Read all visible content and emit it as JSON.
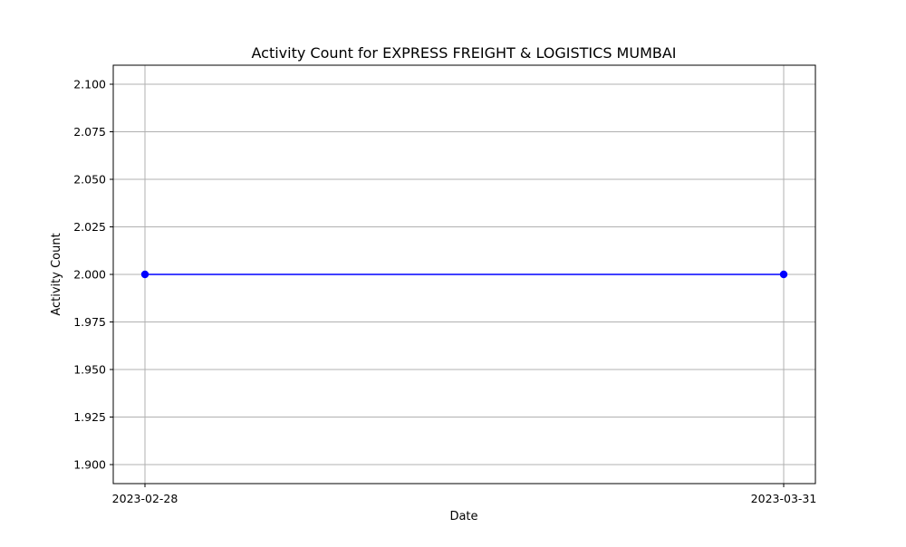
{
  "chart_data": {
    "type": "line",
    "title": "Activity Count for EXPRESS FREIGHT & LOGISTICS MUMBAI",
    "xlabel": "Date",
    "ylabel": "Activity Count",
    "categories": [
      "2023-02-28",
      "2023-03-31"
    ],
    "series": [
      {
        "name": "Activity Count",
        "values": [
          2,
          2
        ],
        "color": "#0000ff",
        "marker": "circle"
      }
    ],
    "ylim": [
      1.89,
      2.11
    ],
    "yticks": [
      1.9,
      1.925,
      1.95,
      1.975,
      2.0,
      2.025,
      2.05,
      2.075,
      2.1
    ],
    "ytick_labels": [
      "1.900",
      "1.925",
      "1.950",
      "1.975",
      "2.000",
      "2.025",
      "2.050",
      "2.075",
      "2.100"
    ],
    "grid": true,
    "grid_color": "#b0b0b0"
  }
}
